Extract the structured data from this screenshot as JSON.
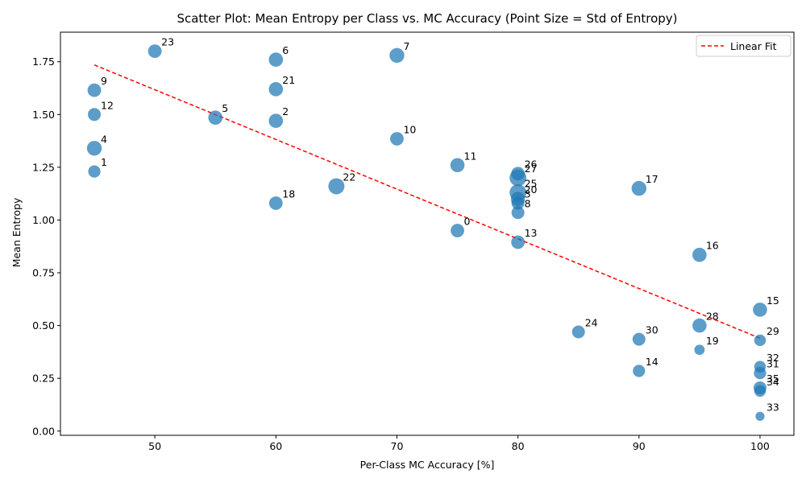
{
  "chart_data": {
    "type": "scatter",
    "title": "Scatter Plot: Mean Entropy per Class vs. MC Accuracy (Point Size = Std of Entropy)",
    "xlabel": "Per-Class MC Accuracy [%]",
    "ylabel": "Mean Entropy",
    "xlim": [
      42.2,
      102.8
    ],
    "ylim": [
      -0.02,
      1.89
    ],
    "xticks": [
      50,
      60,
      70,
      80,
      90,
      100
    ],
    "xtick_labels": [
      "50",
      "60",
      "70",
      "80",
      "90",
      "100"
    ],
    "yticks": [
      0.0,
      0.25,
      0.5,
      0.75,
      1.0,
      1.25,
      1.5,
      1.75
    ],
    "ytick_labels": [
      "0.00",
      "0.25",
      "0.50",
      "0.75",
      "1.00",
      "1.25",
      "1.50",
      "1.75"
    ],
    "grid": false,
    "legend_position": "top-right",
    "point_color": "#1f77b4",
    "fit_color": "#ff0000",
    "points": [
      {
        "label": "0",
        "x": 75,
        "y": 0.95,
        "size": 0.55
      },
      {
        "label": "1",
        "x": 45,
        "y": 1.23,
        "size": 0.45
      },
      {
        "label": "2",
        "x": 60,
        "y": 1.47,
        "size": 0.6
      },
      {
        "label": "3",
        "x": 80,
        "y": 1.08,
        "size": 0.5
      },
      {
        "label": "4",
        "x": 45,
        "y": 1.34,
        "size": 0.65
      },
      {
        "label": "5",
        "x": 55,
        "y": 1.485,
        "size": 0.6
      },
      {
        "label": "6",
        "x": 60,
        "y": 1.76,
        "size": 0.6
      },
      {
        "label": "7",
        "x": 70,
        "y": 1.78,
        "size": 0.65
      },
      {
        "label": "8",
        "x": 80,
        "y": 1.035,
        "size": 0.5
      },
      {
        "label": "9",
        "x": 45,
        "y": 1.615,
        "size": 0.55
      },
      {
        "label": "10",
        "x": 70,
        "y": 1.385,
        "size": 0.55
      },
      {
        "label": "11",
        "x": 75,
        "y": 1.26,
        "size": 0.6
      },
      {
        "label": "12",
        "x": 45,
        "y": 1.5,
        "size": 0.5
      },
      {
        "label": "13",
        "x": 80,
        "y": 0.895,
        "size": 0.55
      },
      {
        "label": "14",
        "x": 90,
        "y": 0.285,
        "size": 0.45
      },
      {
        "label": "15",
        "x": 100,
        "y": 0.575,
        "size": 0.6
      },
      {
        "label": "16",
        "x": 95,
        "y": 0.835,
        "size": 0.6
      },
      {
        "label": "17",
        "x": 90,
        "y": 1.15,
        "size": 0.65
      },
      {
        "label": "18",
        "x": 60,
        "y": 1.08,
        "size": 0.55
      },
      {
        "label": "19",
        "x": 95,
        "y": 0.385,
        "size": 0.3
      },
      {
        "label": "20",
        "x": 80,
        "y": 1.1,
        "size": 0.6
      },
      {
        "label": "21",
        "x": 60,
        "y": 1.62,
        "size": 0.6
      },
      {
        "label": "22",
        "x": 65,
        "y": 1.16,
        "size": 0.75
      },
      {
        "label": "23",
        "x": 50,
        "y": 1.8,
        "size": 0.55
      },
      {
        "label": "24",
        "x": 85,
        "y": 0.47,
        "size": 0.5
      },
      {
        "label": "25",
        "x": 80,
        "y": 1.13,
        "size": 0.8
      },
      {
        "label": "26",
        "x": 80,
        "y": 1.22,
        "size": 0.55
      },
      {
        "label": "27",
        "x": 80,
        "y": 1.2,
        "size": 0.8
      },
      {
        "label": "28",
        "x": 95,
        "y": 0.5,
        "size": 0.6
      },
      {
        "label": "29",
        "x": 100,
        "y": 0.43,
        "size": 0.4
      },
      {
        "label": "30",
        "x": 90,
        "y": 0.435,
        "size": 0.5
      },
      {
        "label": "31",
        "x": 100,
        "y": 0.275,
        "size": 0.45
      },
      {
        "label": "32",
        "x": 100,
        "y": 0.305,
        "size": 0.4
      },
      {
        "label": "33",
        "x": 100,
        "y": 0.07,
        "size": 0.2
      },
      {
        "label": "34",
        "x": 100,
        "y": 0.19,
        "size": 0.4
      },
      {
        "label": "35",
        "x": 100,
        "y": 0.205,
        "size": 0.5
      }
    ],
    "fit_line": {
      "name": "Linear Fit",
      "x": [
        45,
        100
      ],
      "y": [
        1.735,
        0.44
      ]
    }
  }
}
